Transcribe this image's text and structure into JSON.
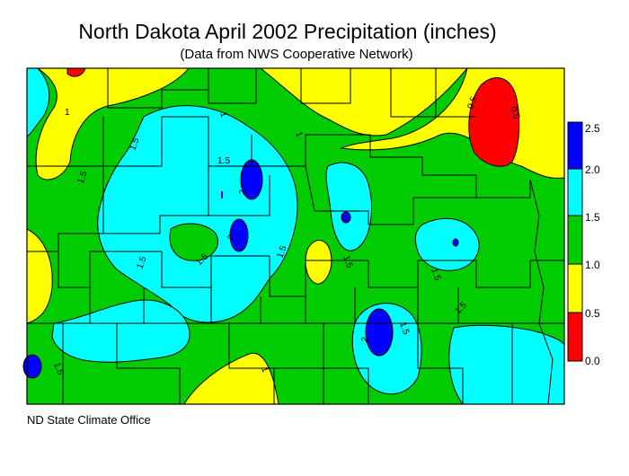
{
  "title": "North Dakota April 2002 Precipitation (inches)",
  "subtitle": "(Data from NWS Cooperative Network)",
  "credit": "ND State Climate Office",
  "legend": {
    "bins": [
      {
        "range": "0.0 - 0.5",
        "color": "#ff0000"
      },
      {
        "range": "0.5 - 1.0",
        "color": "#ffff00"
      },
      {
        "range": "1.0 - 1.5",
        "color": "#00cc00"
      },
      {
        "range": "1.5 - 2.0",
        "color": "#00ffff"
      },
      {
        "range": "2.0 - 2.5",
        "color": "#0000ff"
      }
    ],
    "labels": [
      "2.5",
      "2.0",
      "1.5",
      "1.0",
      "0.5",
      "0.0"
    ]
  },
  "contour_labels": [
    "1",
    "1.5",
    "1.5",
    "1.5",
    "2",
    "2",
    "1",
    "1.5",
    "1.5",
    "1",
    "1.5",
    "2",
    "1.5",
    "0.5",
    "0.5",
    "1.5",
    "1.5",
    "1.5",
    "1.5",
    "1"
  ]
}
